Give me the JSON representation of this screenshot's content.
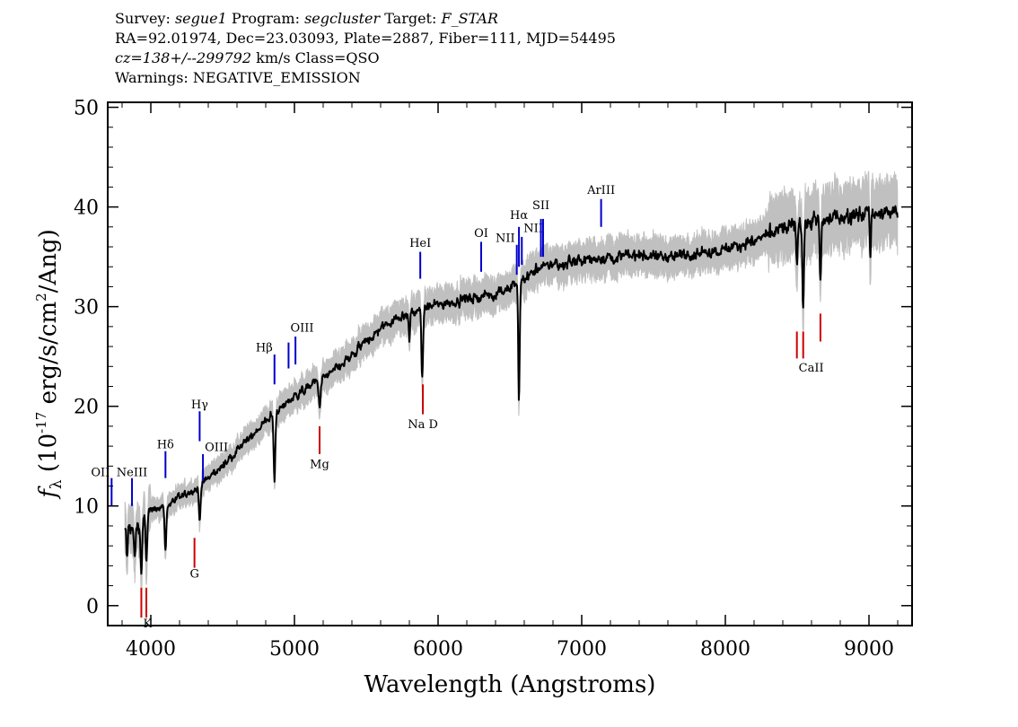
{
  "header": {
    "line1": {
      "survey_label": "Survey:",
      "survey": "segue1",
      "program_label": "Program:",
      "program": "segcluster",
      "target_label": "Target:",
      "target": "F_STAR"
    },
    "line2": "RA=92.01974, Dec=23.03093, Plate=2887, Fiber=111, MJD=54495",
    "line3": {
      "redshift": "cz=138+/--299792",
      "rest": " km/s Class=QSO"
    },
    "line4": "Warnings: NEGATIVE_EMISSION"
  },
  "chart_data": {
    "type": "line",
    "title": "",
    "xlabel": "Wavelength (Angstroms)",
    "ylabel_prefix": "f",
    "ylabel_sub": "λ",
    "ylabel_main": " (10",
    "ylabel_exp1": "-17",
    "ylabel_mid": " erg/s/cm",
    "ylabel_exp2": "2",
    "ylabel_end": "/Ang)",
    "xlim": [
      3700,
      9300
    ],
    "ylim": [
      -2,
      50.5
    ],
    "xticks": [
      4000,
      5000,
      6000,
      7000,
      8000,
      9000
    ],
    "yticks": [
      0,
      10,
      20,
      30,
      40,
      50
    ],
    "xtick_labels": [
      "4000",
      "5000",
      "6000",
      "7000",
      "8000",
      "9000"
    ],
    "ytick_labels": [
      "0",
      "10",
      "20",
      "30",
      "40",
      "50"
    ],
    "grid": false,
    "colors": {
      "flux": "#000000",
      "error": "#c0c0c0",
      "emission": "#0000cc",
      "absorption": "#cc0000"
    },
    "continuum_anchor_points": [
      [
        3800,
        7.5
      ],
      [
        3900,
        7.8
      ],
      [
        4000,
        9.5
      ],
      [
        4100,
        10.0
      ],
      [
        4200,
        10.8
      ],
      [
        4300,
        11.5
      ],
      [
        4400,
        12.8
      ],
      [
        4500,
        14.0
      ],
      [
        4600,
        15.5
      ],
      [
        4700,
        17.0
      ],
      [
        4800,
        18.5
      ],
      [
        4900,
        19.8
      ],
      [
        5000,
        21.0
      ],
      [
        5100,
        22.0
      ],
      [
        5200,
        22.8
      ],
      [
        5300,
        23.8
      ],
      [
        5400,
        25.0
      ],
      [
        5500,
        26.5
      ],
      [
        5600,
        27.8
      ],
      [
        5700,
        28.8
      ],
      [
        5800,
        29.3
      ],
      [
        5900,
        29.8
      ],
      [
        6000,
        30.2
      ],
      [
        6100,
        30.5
      ],
      [
        6200,
        30.8
      ],
      [
        6300,
        31.0
      ],
      [
        6400,
        31.3
      ],
      [
        6500,
        31.8
      ],
      [
        6600,
        32.8
      ],
      [
        6700,
        33.8
      ],
      [
        6800,
        34.2
      ],
      [
        7000,
        34.6
      ],
      [
        7200,
        35.0
      ],
      [
        7400,
        35.2
      ],
      [
        7600,
        35.0
      ],
      [
        7800,
        35.3
      ],
      [
        8000,
        35.8
      ],
      [
        8200,
        36.6
      ],
      [
        8400,
        37.8
      ],
      [
        8600,
        38.5
      ],
      [
        8800,
        39.0
      ],
      [
        9000,
        39.5
      ],
      [
        9200,
        39.3
      ]
    ],
    "absorption_features": [
      {
        "center": 3934,
        "depth": 5.0,
        "width": 8
      },
      {
        "center": 3969,
        "depth": 4.5,
        "width": 8
      },
      {
        "center": 3889,
        "depth": 3.0,
        "width": 8
      },
      {
        "center": 3835,
        "depth": 3.0,
        "width": 6
      },
      {
        "center": 4102,
        "depth": 4.5,
        "width": 8
      },
      {
        "center": 4340,
        "depth": 3.5,
        "width": 8
      },
      {
        "center": 4861,
        "depth": 7.0,
        "width": 8
      },
      {
        "center": 5175,
        "depth": 2.5,
        "width": 10
      },
      {
        "center": 5890,
        "depth": 7.0,
        "width": 8
      },
      {
        "center": 5800,
        "depth": 3.0,
        "width": 6
      },
      {
        "center": 6563,
        "depth": 12.0,
        "width": 7
      },
      {
        "center": 8498,
        "depth": 3.5,
        "width": 7
      },
      {
        "center": 8542,
        "depth": 8.5,
        "width": 7
      },
      {
        "center": 8662,
        "depth": 6.5,
        "width": 7
      },
      {
        "center": 9010,
        "depth": 4.0,
        "width": 6
      }
    ],
    "emission_lines": [
      {
        "label": "OII",
        "wavelength": 3727,
        "y_low": 10.0,
        "y_high": 12.8,
        "label_y": 13.0,
        "anchor": "end",
        "color": "#0000cc"
      },
      {
        "label": "NeIII",
        "wavelength": 3869,
        "y_low": 10.0,
        "y_high": 12.8,
        "label_y": 13.0,
        "anchor": "middle",
        "color": "#0000cc"
      },
      {
        "label": "Hδ",
        "wavelength": 4102,
        "y_low": 12.8,
        "y_high": 15.5,
        "label_y": 15.8,
        "anchor": "middle",
        "color": "#0000cc"
      },
      {
        "label": "Hγ",
        "wavelength": 4340,
        "y_low": 16.5,
        "y_high": 19.5,
        "label_y": 19.8,
        "anchor": "middle",
        "color": "#0000cc"
      },
      {
        "label": "OIII",
        "wavelength": 4363,
        "y_low": 12.5,
        "y_high": 15.2,
        "label_y": 15.5,
        "anchor": "start",
        "color": "#0000cc"
      },
      {
        "label": "Hβ",
        "wavelength": 4861,
        "y_low": 22.2,
        "y_high": 25.2,
        "label_y": 25.5,
        "anchor": "end",
        "color": "#0000cc"
      },
      {
        "label": "OIII",
        "wavelength": 4959,
        "y_low": 23.8,
        "y_high": 26.4,
        "label_y": 27.5,
        "anchor": "start",
        "color": "#0000cc"
      },
      {
        "label": "OIII",
        "wavelength": 5007,
        "y_low": 24.2,
        "y_high": 27.0,
        "label_y": null,
        "anchor": "start",
        "color": "#0000cc"
      },
      {
        "label": "HeI",
        "wavelength": 5876,
        "y_low": 32.8,
        "y_high": 35.5,
        "label_y": 36.0,
        "anchor": "middle",
        "color": "#0000cc"
      },
      {
        "label": "OI",
        "wavelength": 6300,
        "y_low": 33.5,
        "y_high": 36.5,
        "label_y": 37.0,
        "anchor": "middle",
        "color": "#0000cc"
      },
      {
        "label": "NII",
        "wavelength": 6548,
        "y_low": 33.2,
        "y_high": 36.2,
        "label_y": 36.5,
        "anchor": "end",
        "color": "#0000cc"
      },
      {
        "label": "Hα",
        "wavelength": 6563,
        "y_low": 34.0,
        "y_high": 38.0,
        "label_y": 38.8,
        "anchor": "middle",
        "color": "#0000cc"
      },
      {
        "label": "NII",
        "wavelength": 6583,
        "y_low": 34.2,
        "y_high": 37.0,
        "label_y": 37.5,
        "anchor": "start",
        "color": "#0000cc"
      },
      {
        "label": "SII",
        "wavelength": 6716,
        "y_low": 35.0,
        "y_high": 38.8,
        "label_y": 39.8,
        "anchor": "middle",
        "color": "#0000cc"
      },
      {
        "label": "SII",
        "wavelength": 6731,
        "y_low": 35.0,
        "y_high": 38.8,
        "label_y": null,
        "anchor": "middle",
        "color": "#0000cc"
      },
      {
        "label": "ArIII",
        "wavelength": 7135,
        "y_low": 38.0,
        "y_high": 40.8,
        "label_y": 41.3,
        "anchor": "middle",
        "color": "#0000cc"
      }
    ],
    "absorption_lines": [
      {
        "label": "K",
        "wavelength": 3934,
        "y_low": -1.2,
        "y_high": 1.8,
        "label_y": -2.2,
        "anchor": "start",
        "color": "#cc0000"
      },
      {
        "label": "H",
        "wavelength": 3969,
        "y_low": -1.2,
        "y_high": 1.8,
        "label_y": null,
        "anchor": "start",
        "color": "#cc0000"
      },
      {
        "label": "G",
        "wavelength": 4304,
        "y_low": 3.8,
        "y_high": 6.8,
        "label_y": 2.8,
        "anchor": "middle",
        "color": "#cc0000"
      },
      {
        "label": "Mg",
        "wavelength": 5175,
        "y_low": 15.2,
        "y_high": 18.0,
        "label_y": 13.8,
        "anchor": "middle",
        "color": "#cc0000"
      },
      {
        "label": "Na D",
        "wavelength": 5894,
        "y_low": 19.2,
        "y_high": 22.2,
        "label_y": 17.8,
        "anchor": "middle",
        "color": "#cc0000"
      },
      {
        "label": "CaII",
        "wavelength": 8498,
        "y_low": 24.8,
        "y_high": 27.5,
        "label_y": 23.5,
        "anchor": "start",
        "color": "#cc0000"
      },
      {
        "label": "CaII",
        "wavelength": 8542,
        "y_low": 24.8,
        "y_high": 27.5,
        "label_y": null,
        "anchor": "middle",
        "color": "#cc0000"
      },
      {
        "label": "CaII",
        "wavelength": 8662,
        "y_low": 26.5,
        "y_high": 29.3,
        "label_y": null,
        "anchor": "middle",
        "color": "#cc0000"
      }
    ]
  }
}
